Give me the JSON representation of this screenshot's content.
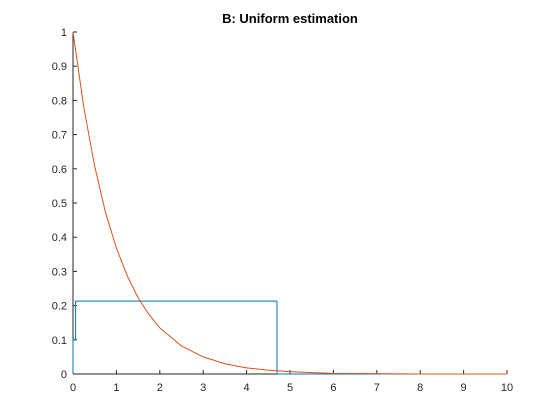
{
  "chart_data": {
    "type": "line",
    "title": "B: Uniform estimation",
    "xlabel": "",
    "ylabel": "",
    "xlim": [
      0,
      10
    ],
    "ylim": [
      0,
      1
    ],
    "xticks": [
      0,
      1,
      2,
      3,
      4,
      5,
      6,
      7,
      8,
      9,
      10
    ],
    "yticks": [
      0,
      0.1,
      0.2,
      0.3,
      0.4,
      0.5,
      0.6,
      0.7,
      0.8,
      0.9,
      1
    ],
    "grid": false,
    "legend": "none",
    "series": [
      {
        "color": "#0072BD",
        "x": [
          0,
          0,
          0.06,
          0.06,
          4.7,
          4.7,
          10
        ],
        "y": [
          0,
          0.1,
          0.1,
          0.213,
          0.213,
          0,
          0
        ]
      },
      {
        "color": "#D95319",
        "x": [
          0,
          0.25,
          0.5,
          0.75,
          1,
          1.25,
          1.5,
          1.75,
          2,
          2.5,
          3,
          3.5,
          4,
          4.5,
          5,
          5.5,
          6,
          7,
          8,
          9,
          10
        ],
        "y": [
          1,
          0.779,
          0.607,
          0.472,
          0.368,
          0.287,
          0.223,
          0.174,
          0.135,
          0.082,
          0.05,
          0.03,
          0.018,
          0.011,
          0.007,
          0.004,
          0.002,
          0.001,
          0,
          0,
          0
        ]
      }
    ]
  }
}
